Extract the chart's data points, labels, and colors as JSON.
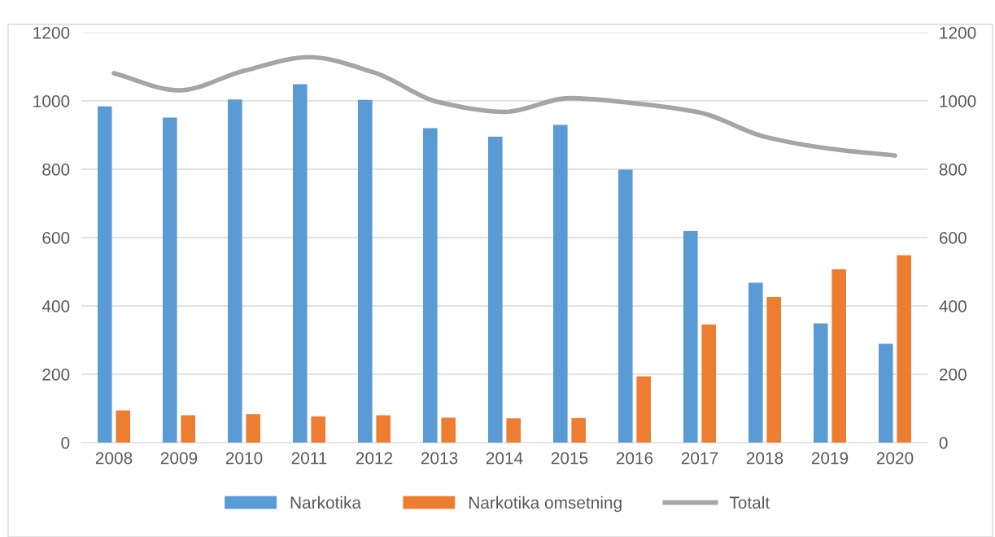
{
  "chart_data": {
    "type": "bar",
    "categories": [
      "2008",
      "2009",
      "2010",
      "2011",
      "2012",
      "2013",
      "2014",
      "2015",
      "2016",
      "2017",
      "2018",
      "2019",
      "2020"
    ],
    "series": [
      {
        "name": "Narkotika",
        "color": "#5b9bd5",
        "values": [
          984,
          951,
          1004,
          1049,
          1003,
          920,
          895,
          930,
          799,
          619,
          468,
          349,
          289
        ]
      },
      {
        "name": "Narkotika omsetning",
        "color": "#ed7d31",
        "values": [
          94,
          80,
          83,
          77,
          80,
          73,
          71,
          72,
          194,
          346,
          426,
          507,
          548
        ]
      },
      {
        "name": "Totalt",
        "type": "line",
        "color": "#a5a5a5",
        "values": [
          1081,
          1031,
          1088,
          1128,
          1083,
          996,
          968,
          1008,
          993,
          966,
          895,
          860,
          840
        ]
      }
    ],
    "ylim": [
      0,
      1200
    ],
    "yticks": [
      0,
      200,
      400,
      600,
      800,
      1000,
      1200
    ],
    "y2lim": [
      0,
      1200
    ],
    "y2ticks": [
      0,
      200,
      400,
      600,
      800,
      1000,
      1200
    ],
    "grid": "y",
    "legend": "bottom"
  }
}
